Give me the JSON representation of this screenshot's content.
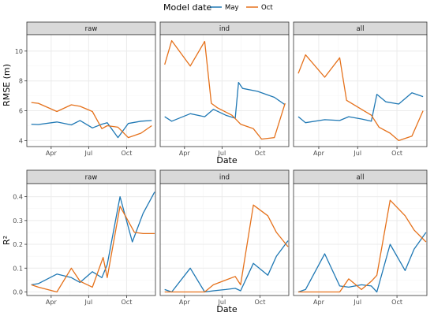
{
  "legend": {
    "title": "Model date",
    "entries": [
      {
        "label": "May",
        "color": "#1f78b4"
      },
      {
        "label": "Oct",
        "color": "#e5711b"
      }
    ]
  },
  "colors": {
    "panel_bg": "#ffffff",
    "panel_border": "#333333",
    "strip_bg": "#d9d9d9",
    "grid_major": "#ebebeb",
    "grid_minor": "#f5f5f5"
  },
  "chart_data": [
    {
      "type": "line",
      "ylabel": "RMSE (m)",
      "xlabel": "Date",
      "x_ticks": [
        "Apr",
        "Jul",
        "Oct"
      ],
      "x_tick_dates": [
        "2019-04-01",
        "2019-07-01",
        "2019-10-01"
      ],
      "xlim": [
        "2019-02-01",
        "2019-12-10"
      ],
      "y_ticks": [
        4,
        6,
        8,
        10
      ],
      "ylim": [
        3.6,
        11.1
      ],
      "panels": [
        {
          "facet": "raw",
          "series": [
            {
              "name": "May",
              "x": [
                "2019-02-12",
                "2019-03-01",
                "2019-04-15",
                "2019-05-20",
                "2019-06-10",
                "2019-07-10",
                "2019-08-02",
                "2019-08-15",
                "2019-09-10",
                "2019-10-05",
                "2019-11-05",
                "2019-12-01"
              ],
              "y": [
                5.1,
                5.08,
                5.25,
                5.05,
                5.35,
                4.85,
                5.1,
                5.2,
                4.2,
                5.15,
                5.3,
                5.35
              ]
            },
            {
              "name": "Oct",
              "x": [
                "2019-02-12",
                "2019-03-01",
                "2019-04-15",
                "2019-05-20",
                "2019-06-10",
                "2019-07-10",
                "2019-08-02",
                "2019-08-15",
                "2019-09-10",
                "2019-10-05",
                "2019-11-05",
                "2019-12-01"
              ],
              "y": [
                6.55,
                6.5,
                5.95,
                6.4,
                6.3,
                5.95,
                4.8,
                5.0,
                4.9,
                4.2,
                4.5,
                5.0
              ]
            }
          ]
        },
        {
          "facet": "ind",
          "series": [
            {
              "name": "May",
              "x": [
                "2019-02-12",
                "2019-03-01",
                "2019-04-15",
                "2019-05-20",
                "2019-06-10",
                "2019-07-10",
                "2019-08-02",
                "2019-08-10",
                "2019-08-20",
                "2019-09-25",
                "2019-11-05",
                "2019-12-01"
              ],
              "y": [
                5.6,
                5.3,
                5.8,
                5.6,
                6.1,
                5.7,
                5.5,
                7.9,
                7.5,
                7.3,
                6.9,
                6.4
              ]
            },
            {
              "name": "Oct",
              "x": [
                "2019-02-12",
                "2019-03-01",
                "2019-04-15",
                "2019-05-20",
                "2019-06-05",
                "2019-06-20",
                "2019-07-25",
                "2019-08-15",
                "2019-09-15",
                "2019-10-05",
                "2019-11-05",
                "2019-12-01"
              ],
              "y": [
                9.1,
                10.7,
                9.0,
                10.65,
                6.5,
                6.2,
                5.7,
                5.1,
                4.8,
                4.1,
                4.2,
                6.5
              ]
            }
          ]
        },
        {
          "facet": "all",
          "series": [
            {
              "name": "May",
              "x": [
                "2019-02-12",
                "2019-03-01",
                "2019-04-15",
                "2019-05-20",
                "2019-06-10",
                "2019-07-10",
                "2019-08-02",
                "2019-08-15",
                "2019-09-05",
                "2019-10-05",
                "2019-11-05",
                "2019-12-01"
              ],
              "y": [
                5.6,
                5.2,
                5.4,
                5.35,
                5.6,
                5.45,
                5.3,
                7.1,
                6.6,
                6.45,
                7.2,
                6.95
              ]
            },
            {
              "name": "Oct",
              "x": [
                "2019-02-12",
                "2019-03-01",
                "2019-04-15",
                "2019-05-20",
                "2019-06-05",
                "2019-07-10",
                "2019-08-02",
                "2019-08-20",
                "2019-09-15",
                "2019-10-05",
                "2019-11-05",
                "2019-12-01"
              ],
              "y": [
                8.5,
                9.75,
                8.25,
                9.55,
                6.7,
                6.1,
                5.7,
                4.9,
                4.5,
                4.0,
                4.3,
                6.0
              ]
            }
          ]
        }
      ]
    },
    {
      "type": "line",
      "ylabel": "R²",
      "xlabel": "Date",
      "x_ticks": [
        "Apr",
        "Jul",
        "Oct"
      ],
      "x_tick_dates": [
        "2019-04-01",
        "2019-07-01",
        "2019-10-01"
      ],
      "xlim": [
        "2019-02-01",
        "2019-12-10"
      ],
      "y_ticks": [
        0.0,
        0.1,
        0.2,
        0.3,
        0.4
      ],
      "ylim": [
        -0.015,
        0.455
      ],
      "panels": [
        {
          "facet": "raw",
          "series": [
            {
              "name": "May",
              "x": [
                "2019-02-12",
                "2019-03-01",
                "2019-04-15",
                "2019-05-20",
                "2019-06-10",
                "2019-07-10",
                "2019-08-02",
                "2019-08-15",
                "2019-09-15",
                "2019-10-15",
                "2019-11-10",
                "2019-12-08"
              ],
              "y": [
                0.03,
                0.035,
                0.075,
                0.06,
                0.04,
                0.085,
                0.06,
                0.115,
                0.4,
                0.21,
                0.33,
                0.42
              ]
            },
            {
              "name": "Oct",
              "x": [
                "2019-02-12",
                "2019-03-01",
                "2019-04-15",
                "2019-05-20",
                "2019-06-10",
                "2019-07-10",
                "2019-08-05",
                "2019-08-15",
                "2019-09-15",
                "2019-10-20",
                "2019-11-10",
                "2019-12-08"
              ],
              "y": [
                0.03,
                0.02,
                0.0,
                0.1,
                0.045,
                0.02,
                0.145,
                0.06,
                0.36,
                0.25,
                0.245,
                0.245
              ]
            }
          ]
        },
        {
          "facet": "ind",
          "series": [
            {
              "name": "May",
              "x": [
                "2019-02-12",
                "2019-03-01",
                "2019-04-15",
                "2019-05-20",
                "2019-06-10",
                "2019-07-10",
                "2019-08-02",
                "2019-08-15",
                "2019-09-15",
                "2019-10-20",
                "2019-11-10",
                "2019-12-08"
              ],
              "y": [
                0.01,
                0.0,
                0.1,
                0.0,
                0.005,
                0.01,
                0.015,
                0.005,
                0.12,
                0.07,
                0.15,
                0.215
              ]
            },
            {
              "name": "Oct",
              "x": [
                "2019-02-12",
                "2019-03-01",
                "2019-04-15",
                "2019-05-20",
                "2019-06-10",
                "2019-07-10",
                "2019-08-02",
                "2019-08-15",
                "2019-09-15",
                "2019-10-20",
                "2019-11-10",
                "2019-12-08"
              ],
              "y": [
                0.0,
                0.0,
                0.0,
                0.0,
                0.03,
                0.05,
                0.065,
                0.03,
                0.365,
                0.32,
                0.25,
                0.19
              ]
            }
          ]
        },
        {
          "facet": "all",
          "series": [
            {
              "name": "May",
              "x": [
                "2019-02-12",
                "2019-03-01",
                "2019-04-15",
                "2019-05-20",
                "2019-06-10",
                "2019-07-10",
                "2019-08-02",
                "2019-08-15",
                "2019-09-15",
                "2019-10-20",
                "2019-11-10",
                "2019-12-08"
              ],
              "y": [
                0.0,
                0.01,
                0.16,
                0.025,
                0.02,
                0.03,
                0.025,
                0.0,
                0.2,
                0.09,
                0.18,
                0.25
              ]
            },
            {
              "name": "Oct",
              "x": [
                "2019-02-12",
                "2019-03-01",
                "2019-04-15",
                "2019-05-20",
                "2019-06-10",
                "2019-07-10",
                "2019-08-02",
                "2019-08-15",
                "2019-09-15",
                "2019-10-20",
                "2019-11-10",
                "2019-12-08"
              ],
              "y": [
                0.0,
                0.0,
                0.0,
                0.0,
                0.055,
                0.01,
                0.045,
                0.07,
                0.385,
                0.32,
                0.26,
                0.21
              ]
            }
          ]
        }
      ]
    }
  ]
}
